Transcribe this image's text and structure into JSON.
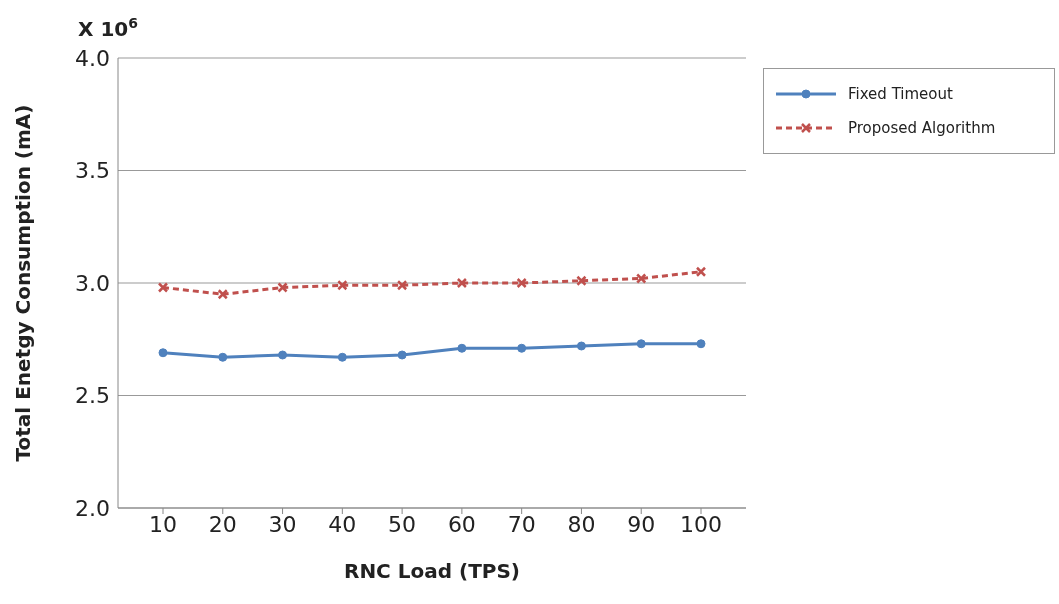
{
  "chart_data": {
    "type": "line",
    "xlabel": "RNC Load (TPS)",
    "ylabel": "Total Enetgy Consumption (mA)",
    "annotations": [
      "X 10$^{6}$"
    ],
    "categories": [
      "10",
      "20",
      "30",
      "40",
      "50",
      "60",
      "70",
      "80",
      "90",
      "100"
    ],
    "series": [
      {
        "name": "Fixed Timeout",
        "color": "#4f81bd",
        "marker": "circle",
        "line_style": "solid",
        "values": [
          2.69,
          2.67,
          2.68,
          2.67,
          2.68,
          2.71,
          2.71,
          2.72,
          2.73,
          2.73
        ]
      },
      {
        "name": "Proposed Algorithm",
        "color": "#c0504d",
        "marker": "cross",
        "line_style": "dashed",
        "values": [
          2.98,
          2.95,
          2.98,
          2.99,
          2.99,
          3.0,
          3.0,
          3.01,
          3.02,
          3.05
        ]
      }
    ],
    "ylim": [
      2,
      4
    ],
    "yticks": [
      {
        "value": 2,
        "label": "2.0"
      },
      {
        "value": 2.5,
        "label": "2.5"
      },
      {
        "value": 3,
        "label": "3.0"
      },
      {
        "value": 3.5,
        "label": "3.5"
      },
      {
        "value": 4,
        "label": "4.0"
      }
    ],
    "grid": "y",
    "legend": "top right"
  }
}
